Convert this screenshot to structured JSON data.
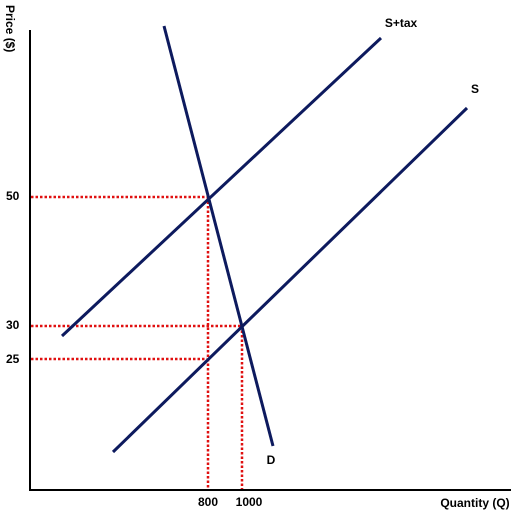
{
  "axes": {
    "y_label": "Price ($)",
    "x_label": "Quantity (Q)"
  },
  "curves": {
    "supply_tax": "S+tax",
    "supply": "S",
    "demand": "D"
  },
  "price_marks": [
    "50",
    "30",
    "25"
  ],
  "quantity_marks": [
    "800",
    "1000"
  ]
}
